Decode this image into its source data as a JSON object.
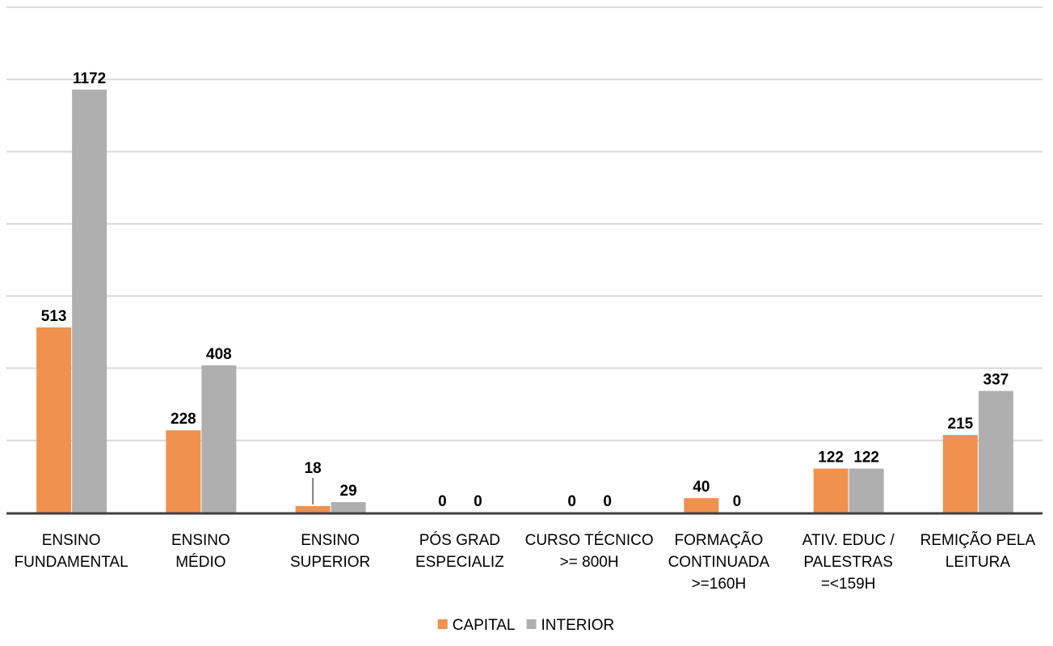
{
  "chart_data": {
    "type": "bar",
    "categories": [
      [
        "ENSINO",
        "FUNDAMENTAL"
      ],
      [
        "ENSINO",
        "MÉDIO"
      ],
      [
        "ENSINO",
        "SUPERIOR"
      ],
      [
        "PÓS GRAD",
        "ESPECIALIZ"
      ],
      [
        "CURSO TÉCNICO",
        ">= 800H"
      ],
      [
        "FORMAÇÃO",
        "CONTINUADA",
        ">=160H"
      ],
      [
        "ATIV. EDUC /",
        "PALESTRAS",
        "=<159H"
      ],
      [
        "REMIÇÃO PELA",
        "LEITURA"
      ]
    ],
    "series": [
      {
        "name": "CAPITAL",
        "color": "#f0914f",
        "values": [
          513,
          228,
          18,
          0,
          0,
          40,
          122,
          215
        ]
      },
      {
        "name": "INTERIOR",
        "color": "#afafaf",
        "values": [
          1172,
          408,
          29,
          0,
          0,
          0,
          122,
          337
        ]
      }
    ],
    "ylim": [
      0,
      1400
    ],
    "grid": true,
    "legend": "bottom",
    "title": "",
    "xlabel": "",
    "ylabel": ""
  }
}
